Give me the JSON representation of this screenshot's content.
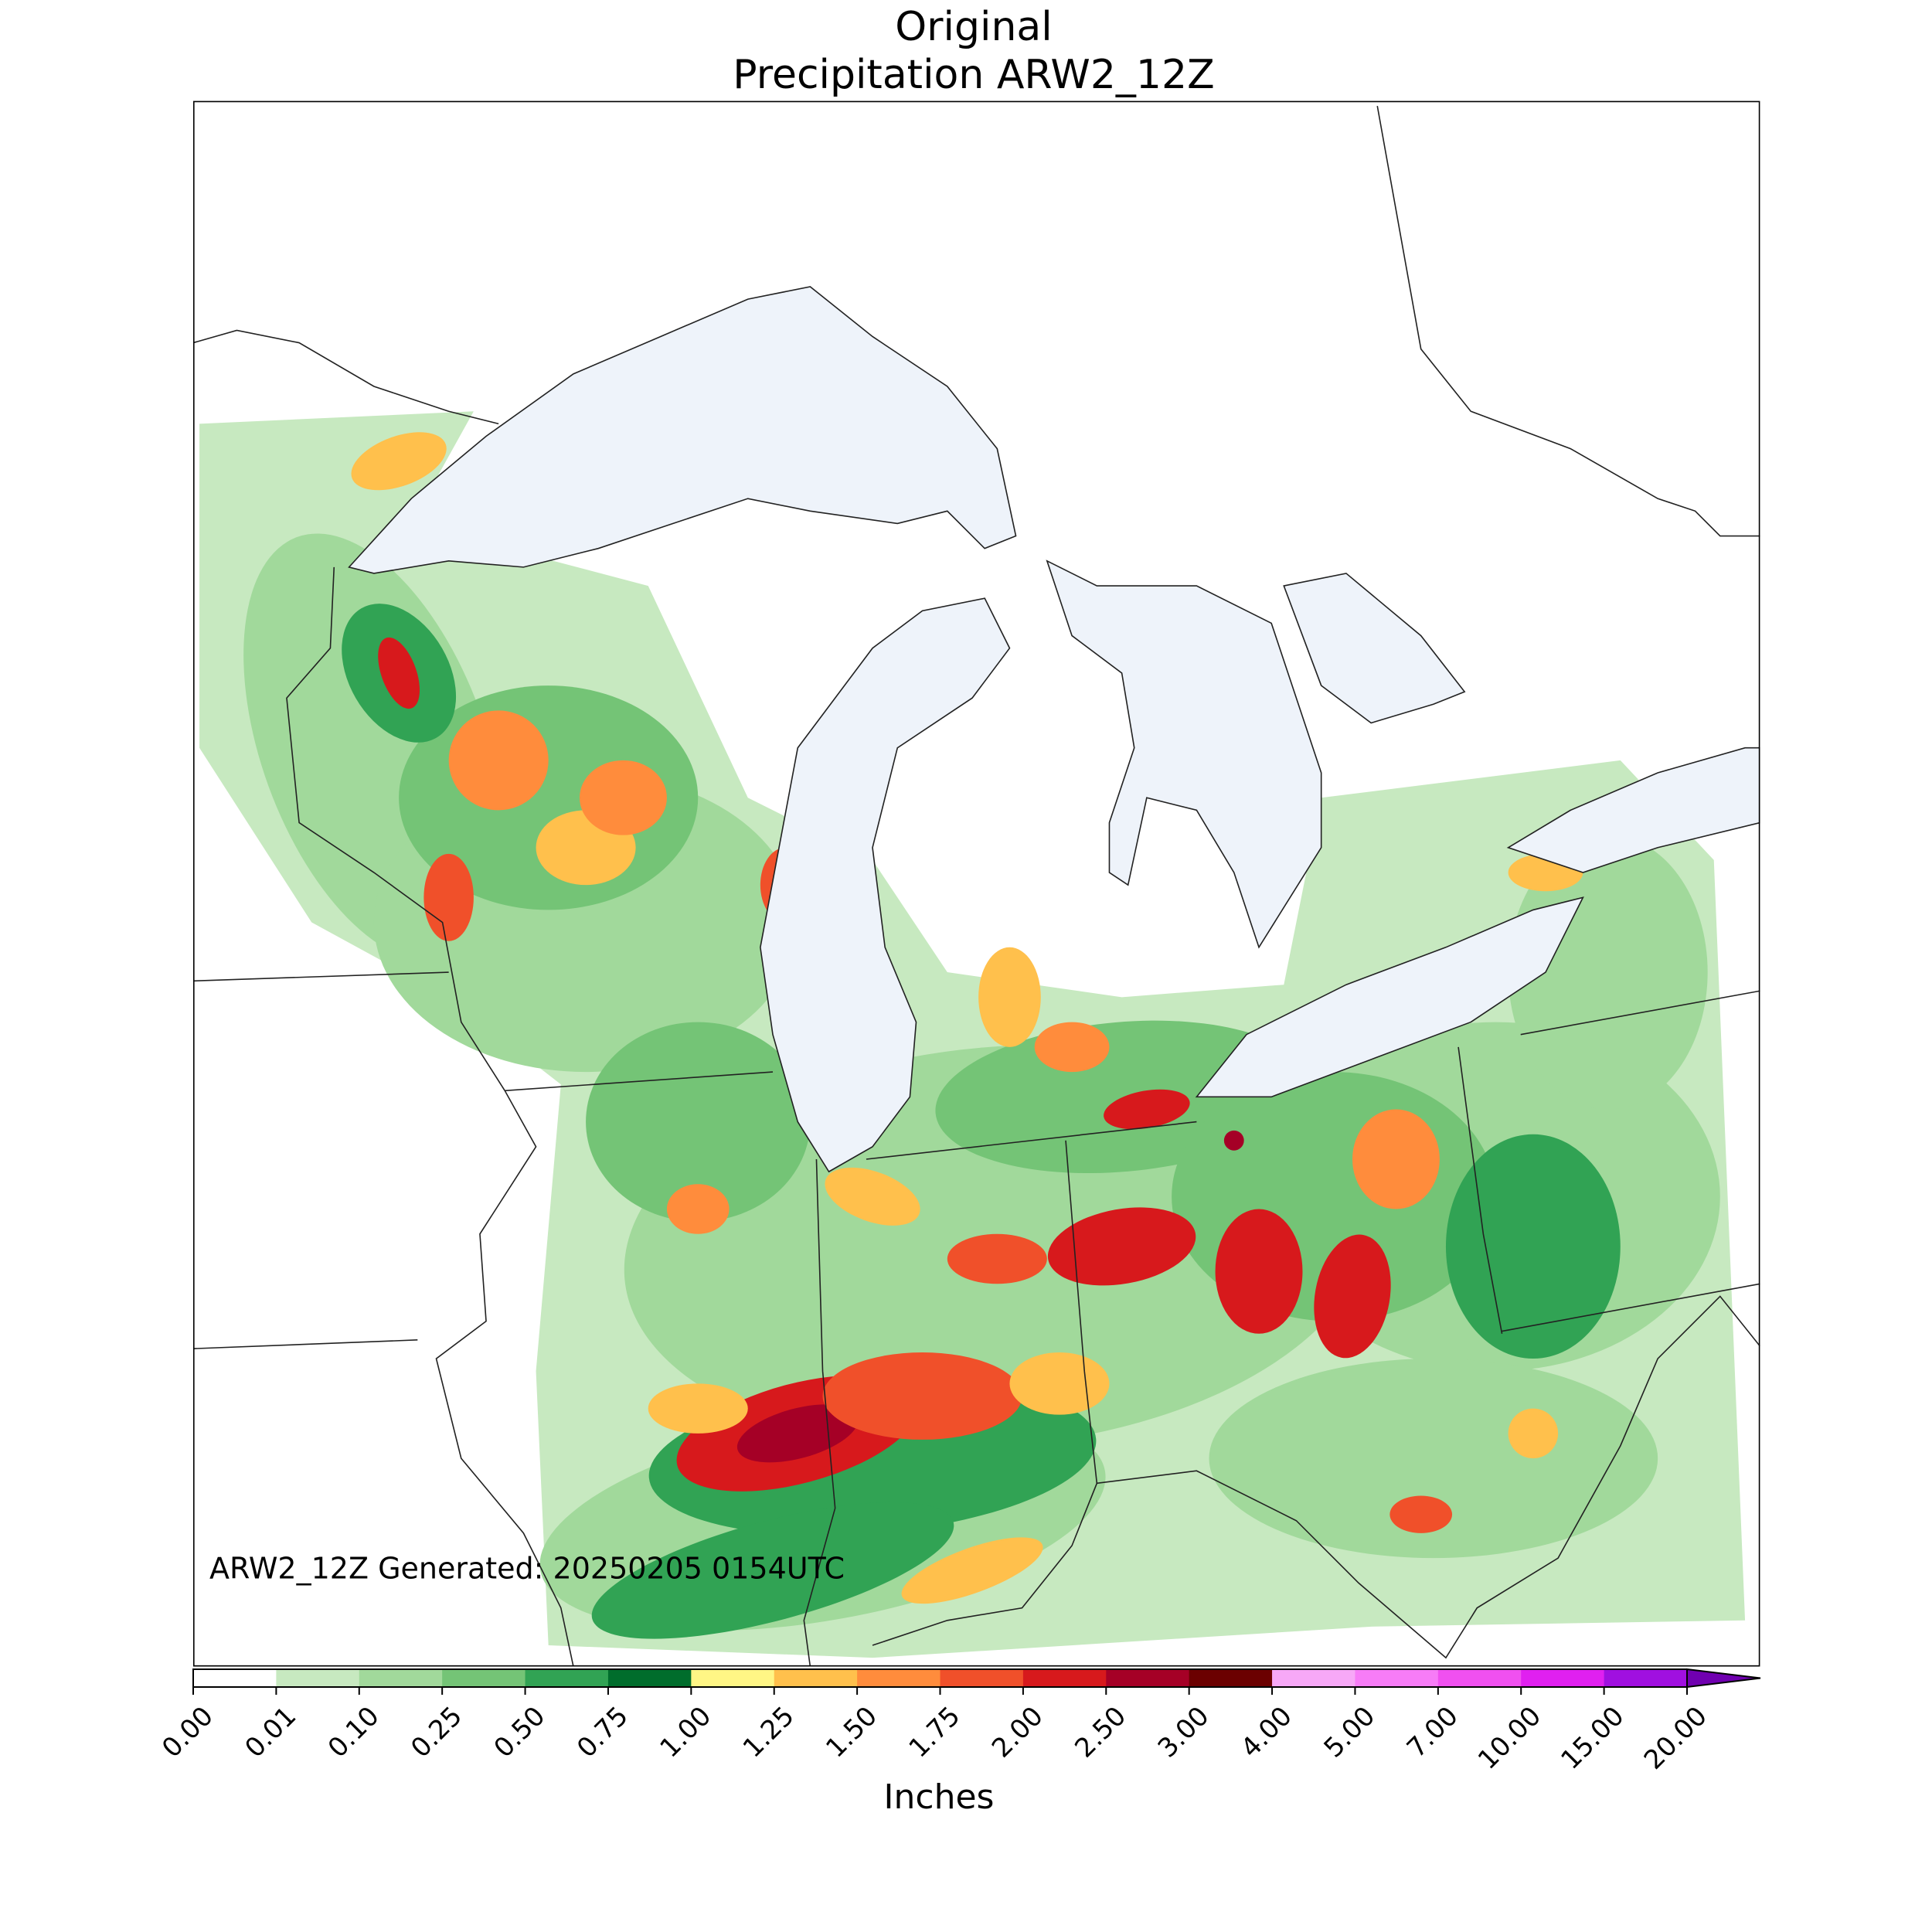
{
  "title": [
    "Original",
    "Precipitation ARW2_12Z"
  ],
  "annotation": "ARW2_12Z Generated: 20250205 0154UTC",
  "colorbar": {
    "label": "Inches",
    "ticks": [
      {
        "value": 0,
        "label": "0.00"
      },
      {
        "value": 0.01,
        "label": "0.01"
      },
      {
        "value": 0.1,
        "label": "0.10"
      },
      {
        "value": 0.25,
        "label": "0.25"
      },
      {
        "value": 0.5,
        "label": "0.50"
      },
      {
        "value": 0.75,
        "label": "0.75"
      },
      {
        "value": 1,
        "label": "1.00"
      },
      {
        "value": 1.25,
        "label": "1.25"
      },
      {
        "value": 1.5,
        "label": "1.50"
      },
      {
        "value": 1.75,
        "label": "1.75"
      },
      {
        "value": 2,
        "label": "2.00"
      },
      {
        "value": 2.5,
        "label": "2.50"
      },
      {
        "value": 3,
        "label": "3.00"
      },
      {
        "value": 4,
        "label": "4.00"
      },
      {
        "value": 5,
        "label": "5.00"
      },
      {
        "value": 7,
        "label": "7.00"
      },
      {
        "value": 10,
        "label": "10.00"
      },
      {
        "value": 15,
        "label": "15.00"
      },
      {
        "value": 20,
        "label": "20.00"
      }
    ],
    "colors": [
      "#ffffff",
      "#c7e9c0",
      "#a1d99b",
      "#74c476",
      "#31a354",
      "#006d2c",
      "#fff685",
      "#ffc04c",
      "#ff8c3c",
      "#f0502a",
      "#d7191c",
      "#a50026",
      "#6b0000",
      "#f7a8f7",
      "#f77cf7",
      "#f050f0",
      "#e020f0",
      "#a010e0"
    ],
    "extend_color": "#7000b0"
  }
}
